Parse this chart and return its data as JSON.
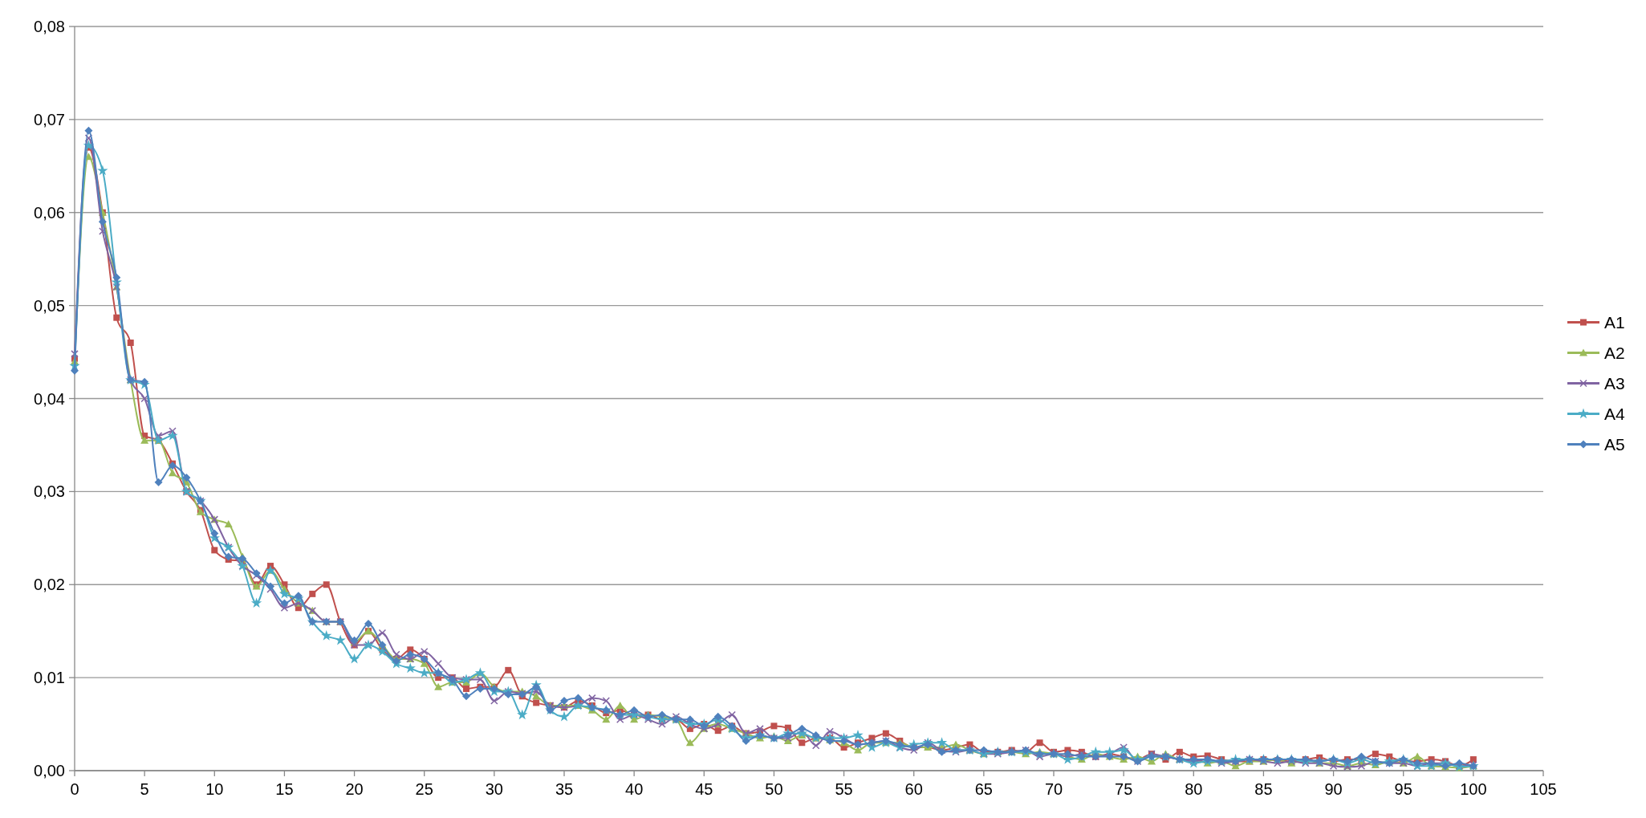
{
  "chart_data": {
    "type": "line",
    "x": [
      0,
      1,
      2,
      3,
      4,
      5,
      6,
      7,
      8,
      9,
      10,
      11,
      12,
      13,
      14,
      15,
      16,
      17,
      18,
      19,
      20,
      21,
      22,
      23,
      24,
      25,
      26,
      27,
      28,
      29,
      30,
      31,
      32,
      33,
      34,
      35,
      36,
      37,
      38,
      39,
      40,
      41,
      42,
      43,
      44,
      45,
      46,
      47,
      48,
      49,
      50,
      51,
      52,
      53,
      54,
      55,
      56,
      57,
      58,
      59,
      60,
      61,
      62,
      63,
      64,
      65,
      66,
      67,
      68,
      69,
      70,
      71,
      72,
      73,
      74,
      75,
      76,
      77,
      78,
      79,
      80,
      81,
      82,
      83,
      84,
      85,
      86,
      87,
      88,
      89,
      90,
      91,
      92,
      93,
      94,
      95,
      96,
      97,
      98,
      99,
      100
    ],
    "xlim": [
      0,
      105
    ],
    "xticks": [
      0,
      5,
      10,
      15,
      20,
      25,
      30,
      35,
      40,
      45,
      50,
      55,
      60,
      65,
      70,
      75,
      80,
      85,
      90,
      95,
      100,
      105
    ],
    "ylim": [
      0,
      0.08
    ],
    "yticks": [
      {
        "value": 0,
        "label": "0,00"
      },
      {
        "value": 0.01,
        "label": "0,01"
      },
      {
        "value": 0.02,
        "label": "0,02"
      },
      {
        "value": 0.03,
        "label": "0,03"
      },
      {
        "value": 0.04,
        "label": "0,04"
      },
      {
        "value": 0.05,
        "label": "0,05"
      },
      {
        "value": 0.06,
        "label": "0,06"
      },
      {
        "value": 0.07,
        "label": "0,07"
      },
      {
        "value": 0.08,
        "label": "0,08"
      }
    ],
    "grid": "y",
    "legend": "right",
    "series": [
      {
        "name": "A1",
        "color": "#c0504d",
        "marker": "square",
        "values": [
          0.0443,
          0.067,
          0.06,
          0.0487,
          0.046,
          0.036,
          0.0355,
          0.033,
          0.03,
          0.028,
          0.0237,
          0.0227,
          0.0225,
          0.02,
          0.022,
          0.02,
          0.0175,
          0.019,
          0.02,
          0.016,
          0.0135,
          0.015,
          0.013,
          0.012,
          0.013,
          0.012,
          0.01,
          0.01,
          0.0088,
          0.009,
          0.009,
          0.0108,
          0.008,
          0.0073,
          0.007,
          0.0068,
          0.0075,
          0.007,
          0.0062,
          0.0065,
          0.006,
          0.006,
          0.0055,
          0.0055,
          0.0045,
          0.005,
          0.0043,
          0.0048,
          0.004,
          0.0042,
          0.0048,
          0.0046,
          0.003,
          0.0035,
          0.0035,
          0.0025,
          0.003,
          0.0035,
          0.004,
          0.0032,
          0.0025,
          0.0025,
          0.0022,
          0.0025,
          0.0028,
          0.002,
          0.002,
          0.0022,
          0.002,
          0.003,
          0.002,
          0.0022,
          0.002,
          0.0015,
          0.0018,
          0.0015,
          0.0012,
          0.0018,
          0.0012,
          0.002,
          0.0015,
          0.0016,
          0.0012,
          0.001,
          0.001,
          0.0012,
          0.0011,
          0.001,
          0.0012,
          0.0014,
          0.001,
          0.0012,
          0.0012,
          0.0018,
          0.0015,
          0.001,
          0.001,
          0.0012,
          0.001,
          0.0005,
          0.0012
        ]
      },
      {
        "name": "A2",
        "color": "#9bbb59",
        "marker": "triangle",
        "values": [
          0.044,
          0.066,
          0.06,
          0.052,
          0.042,
          0.0355,
          0.0355,
          0.032,
          0.031,
          0.0278,
          0.027,
          0.0265,
          0.023,
          0.0198,
          0.0215,
          0.0195,
          0.018,
          0.0172,
          0.016,
          0.016,
          0.0138,
          0.015,
          0.0135,
          0.012,
          0.012,
          0.0115,
          0.009,
          0.0095,
          0.0095,
          0.0105,
          0.009,
          0.0085,
          0.0085,
          0.008,
          0.007,
          0.007,
          0.007,
          0.0065,
          0.0055,
          0.007,
          0.0055,
          0.006,
          0.0058,
          0.0055,
          0.003,
          0.0045,
          0.005,
          0.0045,
          0.004,
          0.0035,
          0.0037,
          0.0032,
          0.0038,
          0.0035,
          0.0033,
          0.003,
          0.0022,
          0.003,
          0.003,
          0.003,
          0.0025,
          0.0025,
          0.0025,
          0.0028,
          0.0022,
          0.0018,
          0.002,
          0.002,
          0.0018,
          0.002,
          0.0018,
          0.0015,
          0.0012,
          0.0018,
          0.0015,
          0.0012,
          0.0015,
          0.001,
          0.0018,
          0.0012,
          0.0012,
          0.0008,
          0.001,
          0.0005,
          0.001,
          0.001,
          0.0012,
          0.0008,
          0.0012,
          0.0008,
          0.0008,
          0.0005,
          0.0008,
          0.0006,
          0.001,
          0.0008,
          0.0015,
          0.0005,
          0.0004,
          0.0003,
          0.0005
        ]
      },
      {
        "name": "A3",
        "color": "#8064a2",
        "marker": "cross",
        "values": [
          0.0448,
          0.068,
          0.058,
          0.052,
          0.042,
          0.04,
          0.036,
          0.0365,
          0.03,
          0.029,
          0.027,
          0.024,
          0.022,
          0.021,
          0.0195,
          0.0175,
          0.018,
          0.0172,
          0.016,
          0.016,
          0.0135,
          0.0135,
          0.0148,
          0.0125,
          0.012,
          0.0128,
          0.0115,
          0.01,
          0.0098,
          0.0098,
          0.0075,
          0.0085,
          0.0083,
          0.0085,
          0.007,
          0.0068,
          0.007,
          0.0078,
          0.0075,
          0.0055,
          0.006,
          0.0055,
          0.005,
          0.0058,
          0.005,
          0.0045,
          0.005,
          0.006,
          0.004,
          0.0045,
          0.0035,
          0.0035,
          0.0042,
          0.0027,
          0.0042,
          0.0035,
          0.0028,
          0.003,
          0.0032,
          0.0025,
          0.0022,
          0.003,
          0.0022,
          0.002,
          0.0022,
          0.0018,
          0.0018,
          0.002,
          0.0022,
          0.0015,
          0.0018,
          0.0015,
          0.0018,
          0.0015,
          0.0018,
          0.0025,
          0.001,
          0.0018,
          0.0015,
          0.0012,
          0.001,
          0.0012,
          0.0008,
          0.001,
          0.0012,
          0.001,
          0.0008,
          0.001,
          0.0008,
          0.0008,
          0.0005,
          0.0004,
          0.0005,
          0.001,
          0.0008,
          0.0008,
          0.0005,
          0.0008,
          0.0008,
          0.0005,
          0.0006
        ]
      },
      {
        "name": "A4",
        "color": "#4bacc6",
        "marker": "star",
        "values": [
          0.0435,
          0.0672,
          0.0645,
          0.0525,
          0.042,
          0.0415,
          0.0355,
          0.036,
          0.03,
          0.029,
          0.025,
          0.024,
          0.022,
          0.018,
          0.0215,
          0.019,
          0.0185,
          0.016,
          0.0145,
          0.014,
          0.012,
          0.0135,
          0.0128,
          0.0115,
          0.011,
          0.0105,
          0.0105,
          0.0095,
          0.0098,
          0.0105,
          0.0085,
          0.0085,
          0.006,
          0.0092,
          0.0065,
          0.0058,
          0.007,
          0.0068,
          0.0065,
          0.006,
          0.006,
          0.0058,
          0.0055,
          0.0055,
          0.005,
          0.005,
          0.0055,
          0.0045,
          0.0035,
          0.0038,
          0.0035,
          0.004,
          0.004,
          0.0035,
          0.0035,
          0.0035,
          0.0038,
          0.0025,
          0.003,
          0.0025,
          0.0028,
          0.003,
          0.003,
          0.0022,
          0.0022,
          0.0018,
          0.002,
          0.002,
          0.002,
          0.0018,
          0.0018,
          0.0012,
          0.0015,
          0.002,
          0.002,
          0.0022,
          0.0012,
          0.0015,
          0.0015,
          0.0012,
          0.0008,
          0.001,
          0.001,
          0.0012,
          0.0012,
          0.0012,
          0.0012,
          0.0012,
          0.001,
          0.001,
          0.0012,
          0.0008,
          0.0012,
          0.0008,
          0.001,
          0.0012,
          0.0005,
          0.0005,
          0.0008,
          0.0004,
          0.0005
        ]
      },
      {
        "name": "A5",
        "color": "#4f81bd",
        "marker": "diamond",
        "values": [
          0.043,
          0.0688,
          0.059,
          0.053,
          0.042,
          0.0418,
          0.031,
          0.0328,
          0.0315,
          0.029,
          0.0255,
          0.023,
          0.0228,
          0.0212,
          0.0198,
          0.018,
          0.0188,
          0.016,
          0.016,
          0.016,
          0.014,
          0.0158,
          0.0135,
          0.0118,
          0.0125,
          0.012,
          0.0105,
          0.0098,
          0.008,
          0.0088,
          0.0088,
          0.0082,
          0.0082,
          0.009,
          0.0065,
          0.0075,
          0.0078,
          0.0068,
          0.0065,
          0.006,
          0.0065,
          0.0058,
          0.006,
          0.0055,
          0.0055,
          0.0048,
          0.0058,
          0.0048,
          0.0032,
          0.0038,
          0.0035,
          0.0038,
          0.0045,
          0.0038,
          0.0032,
          0.0032,
          0.0028,
          0.003,
          0.0032,
          0.0028,
          0.0025,
          0.0028,
          0.002,
          0.0022,
          0.0022,
          0.0022,
          0.002,
          0.002,
          0.0022,
          0.0018,
          0.0018,
          0.0018,
          0.0015,
          0.0015,
          0.0015,
          0.0015,
          0.001,
          0.0015,
          0.0015,
          0.0012,
          0.0012,
          0.0012,
          0.001,
          0.001,
          0.0012,
          0.0012,
          0.0012,
          0.0012,
          0.0012,
          0.001,
          0.0012,
          0.001,
          0.0015,
          0.001,
          0.0008,
          0.0012,
          0.0008,
          0.0008,
          0.0005,
          0.0008,
          0.0005
        ]
      }
    ]
  }
}
